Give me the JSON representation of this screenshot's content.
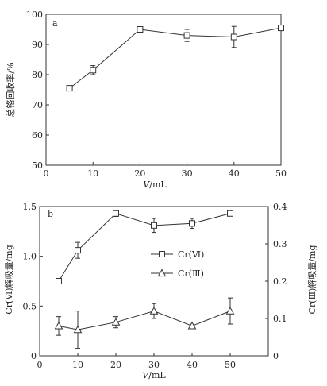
{
  "chart_data": [
    {
      "panel": "a",
      "type": "line",
      "xlabel_italic": "V",
      "xlabel_rest": "/mL",
      "ylabel": "总铬回收率/%",
      "xlim": [
        0,
        50
      ],
      "ylim": [
        50,
        100
      ],
      "xticks": [
        0,
        10,
        20,
        30,
        40,
        50
      ],
      "yticks": [
        50,
        60,
        70,
        80,
        90,
        100
      ],
      "grid": false,
      "series": [
        {
          "marker": "square",
          "x": [
            5,
            10,
            20,
            30,
            40,
            50
          ],
          "y": [
            75.5,
            81.5,
            95,
            93,
            92.5,
            95.5
          ],
          "err": [
            0.5,
            1.5,
            0.5,
            2,
            3.5,
            0.5
          ]
        }
      ]
    },
    {
      "panel": "b",
      "type": "line",
      "xlabel_italic": "V",
      "xlabel_rest": "/mL",
      "ylabel_left": "Cr(Ⅵ)解吸量/mg",
      "ylabel_right": "Cr(Ⅲ)解吸量/mg",
      "xlim": [
        0,
        60
      ],
      "ylim_left": [
        0,
        1.5
      ],
      "ylim_right": [
        0,
        0.4
      ],
      "xticks": [
        0,
        10,
        20,
        30,
        40,
        50
      ],
      "yticks_left": [
        0,
        0.5,
        1.0,
        1.5
      ],
      "yticks_left_labels": [
        "0",
        "0.5",
        "1.0",
        "1.5"
      ],
      "yticks_right": [
        0,
        0.1,
        0.2,
        0.3,
        0.4
      ],
      "yticks_right_labels": [
        "0",
        "0.1",
        "0.2",
        "0.3",
        "0.4"
      ],
      "grid": false,
      "legend_position": "center-right",
      "series": [
        {
          "name": "Cr(Ⅵ)",
          "axis": "left",
          "marker": "square",
          "x": [
            5,
            10,
            20,
            30,
            40,
            50
          ],
          "y": [
            0.75,
            1.06,
            1.43,
            1.31,
            1.33,
            1.43
          ],
          "err": [
            0.01,
            0.08,
            0.03,
            0.07,
            0.05,
            0.01
          ]
        },
        {
          "name": "Cr(Ⅲ)",
          "axis": "right",
          "marker": "triangle",
          "x": [
            5,
            10,
            20,
            30,
            40,
            50
          ],
          "y": [
            0.08,
            0.07,
            0.09,
            0.12,
            0.08,
            0.12
          ],
          "err": [
            0.025,
            0.05,
            0.015,
            0.02,
            0.005,
            0.035
          ]
        }
      ]
    }
  ]
}
